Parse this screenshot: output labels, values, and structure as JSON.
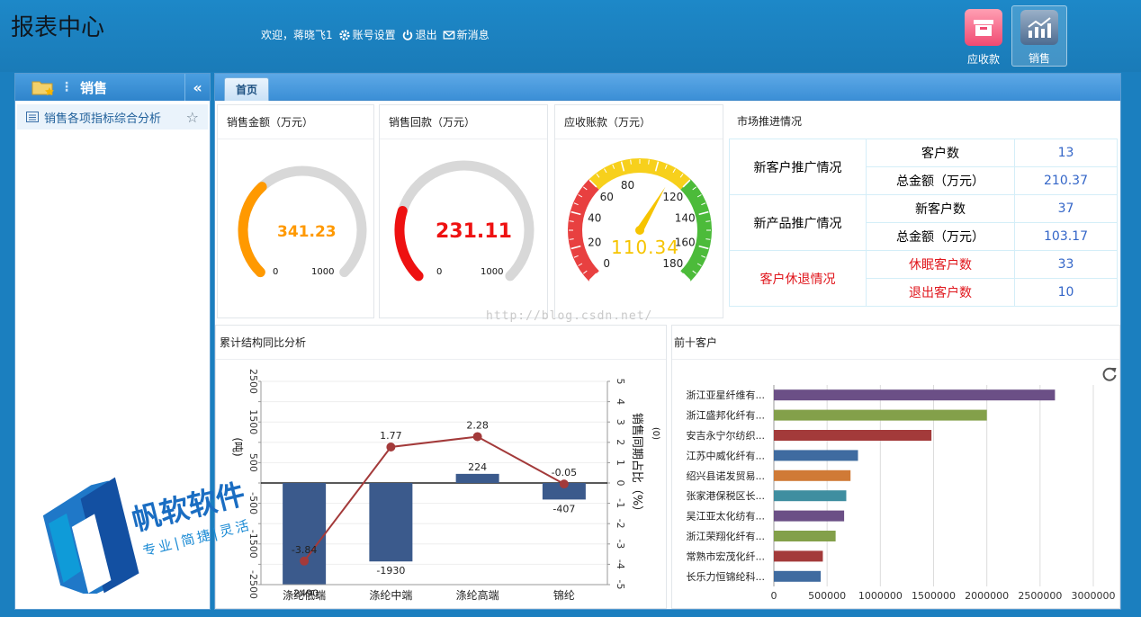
{
  "header": {
    "title": "报表中心",
    "welcome": "欢迎，蒋晓飞1",
    "account_settings": "账号设置",
    "logout": "退出",
    "messages": "新消息",
    "modules": [
      {
        "label": "应收款"
      },
      {
        "label": "销售"
      }
    ]
  },
  "sidebar": {
    "title": "销售",
    "collapse_symbol": "«",
    "items": [
      {
        "label": "销售各项指标综合分析"
      }
    ]
  },
  "tabs": [
    {
      "label": "首页"
    }
  ],
  "panels": {
    "sales_amount": {
      "title": "销售金额（万元）",
      "value": "341.23",
      "min": "0",
      "max": "1000",
      "color": "#ff9900"
    },
    "sales_collection": {
      "title": "销售回款（万元）",
      "value": "231.11",
      "min": "0",
      "max": "1000",
      "color": "#ee1111"
    },
    "receivable": {
      "title": "应收账款（万元）",
      "value": "110.34",
      "ticks": [
        "0",
        "20",
        "40",
        "60",
        "80",
        "120",
        "140",
        "160",
        "180"
      ],
      "max": 180
    },
    "market": {
      "title": "市场推进情况",
      "rows": [
        {
          "group": "新客户推广情况",
          "items": [
            {
              "label": "客户数",
              "value": "13"
            },
            {
              "label": "总金额（万元）",
              "value": "210.37"
            }
          ]
        },
        {
          "group": "新产品推广情况",
          "items": [
            {
              "label": "新客户数",
              "value": "37"
            },
            {
              "label": "总金额（万元）",
              "value": "103.17"
            }
          ]
        },
        {
          "group": "客户休退情况",
          "items": [
            {
              "label": "休眠客户数",
              "value": "33"
            },
            {
              "label": "退出客户数",
              "value": "10"
            }
          ]
        }
      ]
    },
    "structure": {
      "title": "累计结构同比分析"
    },
    "top_customers": {
      "title": "前十客户"
    }
  },
  "watermark": "http://blog.csdn.net/",
  "brand": {
    "name": "帆软软件",
    "slogan": "专业|简捷|灵活"
  },
  "chart_data": [
    {
      "type": "bar",
      "title": "累计结构同比分析",
      "categories": [
        "涤纶低端",
        "涤纶中端",
        "涤纶高端",
        "锦纶"
      ],
      "series": [
        {
          "values": [
            -2490,
            -1930,
            224,
            -407
          ],
          "type": "bar",
          "color": "#3b5a8c"
        },
        {
          "values": [
            -3.84,
            1.77,
            2.28,
            -0.05
          ],
          "type": "line",
          "color": "#a33a3a"
        }
      ],
      "bar_labels": [
        "-2490",
        "-1930",
        "224",
        "-407"
      ],
      "line_labels": [
        "-3.84",
        "1.77",
        "2.28",
        "-0.05"
      ],
      "ylim_left": [
        -2500,
        2500
      ],
      "ylim_right": [
        -5,
        5
      ],
      "yticks_left": [
        "2500",
        "1500",
        "500",
        "-500",
        "-1500",
        "-2500"
      ],
      "yticks_right": [
        "5",
        "4",
        "3",
        "2",
        "1",
        "0",
        "-1",
        "-2",
        "-3",
        "-4",
        "-5"
      ],
      "ylabel_left": "(吨)",
      "ylabel_right": "销售同期占比（%）",
      "ylabel_right_unit": "(0)"
    },
    {
      "type": "bar",
      "orientation": "horizontal",
      "title": "前十客户",
      "categories": [
        "浙江亚星纤维有...",
        "浙江盛邦化纤有...",
        "安吉永宁尔纺织...",
        "江苏中威化纤有...",
        "绍兴县诺发贸易...",
        "张家港保税区长...",
        "吴江亚太化纺有...",
        "浙江荣翔化纤有...",
        "常熟市宏茂化纤...",
        "长乐力恒锦纶科..."
      ],
      "values": [
        2640000,
        2000000,
        1480000,
        790000,
        720000,
        680000,
        660000,
        580000,
        460000,
        440000
      ],
      "colors": [
        "#6b4f86",
        "#83a04a",
        "#a33a3a",
        "#3f6ba0",
        "#d07a36",
        "#3f8ea0",
        "#6b4f86",
        "#83a04a",
        "#a33a3a",
        "#3f6ba0"
      ],
      "xlim": [
        0,
        3000000
      ],
      "xticks": [
        "0",
        "500000",
        "1000000",
        "1500000",
        "2000000",
        "2500000",
        "3000000"
      ],
      "grid": true
    }
  ]
}
